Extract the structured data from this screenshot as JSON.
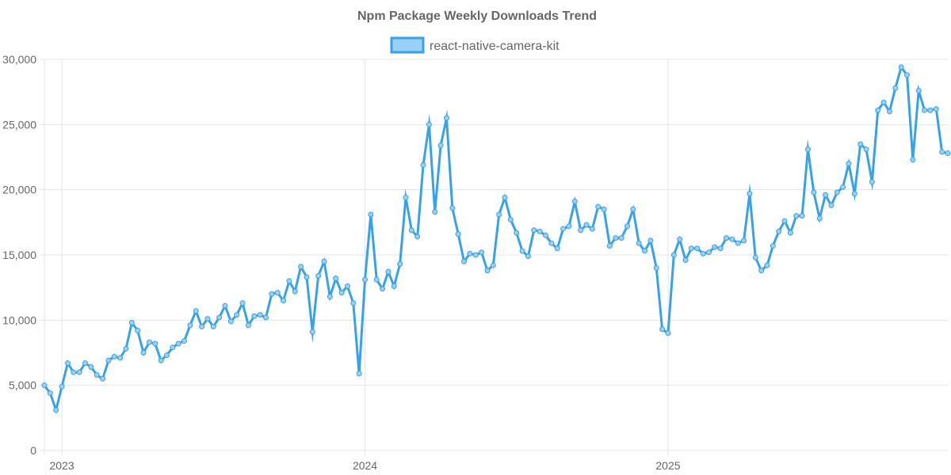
{
  "chart_data": {
    "type": "line",
    "title": "Npm Package Weekly Downloads Trend",
    "xlabel": "",
    "ylabel": "",
    "ylim": [
      0,
      30000
    ],
    "grid": true,
    "legend_position": "top-center",
    "y_ticks": [
      0,
      5000,
      10000,
      15000,
      20000,
      25000,
      30000
    ],
    "y_tick_labels": [
      "0",
      "5,000",
      "10,000",
      "15,000",
      "20,000",
      "25,000",
      "30,000"
    ],
    "x_ticks": [
      {
        "week": 3,
        "label": "2023"
      },
      {
        "week": 55,
        "label": "2024"
      },
      {
        "week": 107,
        "label": "2025"
      }
    ],
    "series": [
      {
        "name": "react-native-camera-kit",
        "color": "#36a2eb",
        "fill": "#9ad0f5",
        "values": [
          5000,
          4400,
          3100,
          4900,
          6700,
          6000,
          6000,
          6700,
          6400,
          5800,
          5500,
          6900,
          7200,
          7100,
          7800,
          9800,
          9200,
          7500,
          8300,
          8200,
          6900,
          7300,
          7900,
          8200,
          8400,
          9600,
          10700,
          9500,
          10100,
          9500,
          10200,
          11100,
          9900,
          10400,
          11300,
          9600,
          10300,
          10400,
          10200,
          12000,
          12100,
          11500,
          13000,
          12200,
          14100,
          13300,
          9100,
          13400,
          14500,
          11800,
          13200,
          12100,
          12600,
          11300,
          5900,
          13100,
          18100,
          13100,
          12400,
          13700,
          12600,
          14300,
          19400,
          16900,
          16400,
          21900,
          25000,
          18300,
          23400,
          25500,
          18600,
          16600,
          14500,
          15100,
          15000,
          15200,
          13800,
          14200,
          18100,
          19400,
          17700,
          16700,
          15300,
          14900,
          16900,
          16800,
          16500,
          15900,
          15500,
          17000,
          17200,
          19100,
          16900,
          17300,
          17000,
          18700,
          18500,
          15700,
          16300,
          16300,
          17200,
          18500,
          15900,
          15300,
          16100,
          14000,
          9300,
          9000,
          15000,
          16200,
          14600,
          15500,
          15500,
          15100,
          15200,
          15600,
          15500,
          16300,
          16200,
          15900,
          16100,
          19700,
          14800,
          13800,
          14200,
          15700,
          16800,
          17600,
          16700,
          18000,
          18000,
          23100,
          19800,
          17800,
          19600,
          18800,
          19800,
          20200,
          22000,
          19700,
          23500,
          23100,
          20600,
          26100,
          26700,
          26000,
          27800,
          29400,
          28800,
          22300,
          27600,
          26100,
          26100,
          26200,
          22900,
          22800
        ]
      }
    ]
  }
}
